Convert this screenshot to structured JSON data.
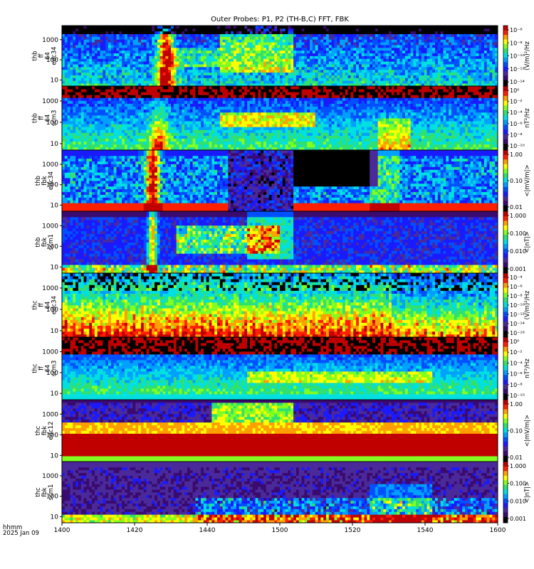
{
  "chart_data": {
    "type": "heatmap",
    "title": "Outer Probes: P1, P2 (TH-B,C) FFT, FBK",
    "xaxis": {
      "range": [
        "1400",
        "1600"
      ],
      "ticks": [
        "1400",
        "1420",
        "1440",
        "1500",
        "1520",
        "1540",
        "1600"
      ],
      "label_lines": [
        "hhmm",
        "2025 Jan 09"
      ]
    },
    "panels": [
      {
        "ylabel": [
          "thb",
          "ff",
          "64",
          "edc34"
        ],
        "yticks": [
          "10",
          "100",
          "1000"
        ],
        "ylog": true,
        "cbar_label": "(V/m)²/Hz",
        "cbar_ticks": [
          "10⁻⁶",
          "10⁻⁸",
          "10⁻¹⁰",
          "10⁻¹²",
          "10⁻¹⁴"
        ]
      },
      {
        "ylabel": [
          "thb",
          "ff",
          "64",
          "scm3"
        ],
        "yticks": [
          "10",
          "100",
          "1000"
        ],
        "ylog": true,
        "cbar_label": "nT²/Hz",
        "cbar_ticks": [
          "10⁰",
          "10⁻²",
          "10⁻⁴",
          "10⁻⁶",
          "10⁻⁸",
          "10⁻¹⁰"
        ]
      },
      {
        "ylabel": [
          "thb",
          "fbk",
          "edc34"
        ],
        "yticks": [
          "10",
          "100",
          "1000"
        ],
        "ylog": true,
        "cbar_label": "<|mV/m|>",
        "cbar_ticks": [
          "1.00",
          "0.10",
          "0.01"
        ]
      },
      {
        "ylabel": [
          "thb",
          "fbk",
          "scm1"
        ],
        "yticks": [
          "10",
          "100",
          "1000"
        ],
        "ylog": true,
        "cbar_label": "<|nT|>",
        "cbar_ticks": [
          "1.000",
          "0.100",
          "0.010",
          "0.001"
        ]
      },
      {
        "ylabel": [
          "thc",
          "ff",
          "64",
          "edc34"
        ],
        "yticks": [
          "10",
          "100",
          "1000"
        ],
        "ylog": true,
        "cbar_label": "(V/m)²/Hz",
        "cbar_ticks": [
          "10⁻⁴",
          "10⁻⁶",
          "10⁻⁸",
          "10⁻¹⁰",
          "10⁻¹²",
          "10⁻¹⁴",
          "10⁻¹⁶"
        ]
      },
      {
        "ylabel": [
          "thc",
          "ff",
          "64",
          "scm3"
        ],
        "yticks": [
          "10",
          "100",
          "1000"
        ],
        "ylog": true,
        "cbar_label": "nT²/Hz",
        "cbar_ticks": [
          "10⁰",
          "10⁻²",
          "10⁻⁴",
          "10⁻⁶",
          "10⁻⁸",
          "10⁻¹⁰"
        ]
      },
      {
        "ylabel": [
          "thc",
          "fbk",
          "edc12"
        ],
        "yticks": [
          "10",
          "100",
          "1000"
        ],
        "ylog": true,
        "cbar_label": "<|mV/m|>",
        "cbar_ticks": [
          "1.00",
          "0.10",
          "0.01"
        ]
      },
      {
        "ylabel": [
          "thc",
          "fbk",
          "scm1"
        ],
        "yticks": [
          "10",
          "100",
          "1000"
        ],
        "ylog": true,
        "cbar_label": "<|nT|>",
        "cbar_ticks": [
          "1.000",
          "0.100",
          "0.010",
          "0.001"
        ]
      }
    ],
    "colorscale": [
      "#000000",
      "#3a0a6e",
      "#4a2a9a",
      "#1a1aff",
      "#0050ff",
      "#00a0ff",
      "#00e0e0",
      "#30e070",
      "#80ff20",
      "#ffff00",
      "#ffa000",
      "#ff2000",
      "#c00000"
    ]
  }
}
